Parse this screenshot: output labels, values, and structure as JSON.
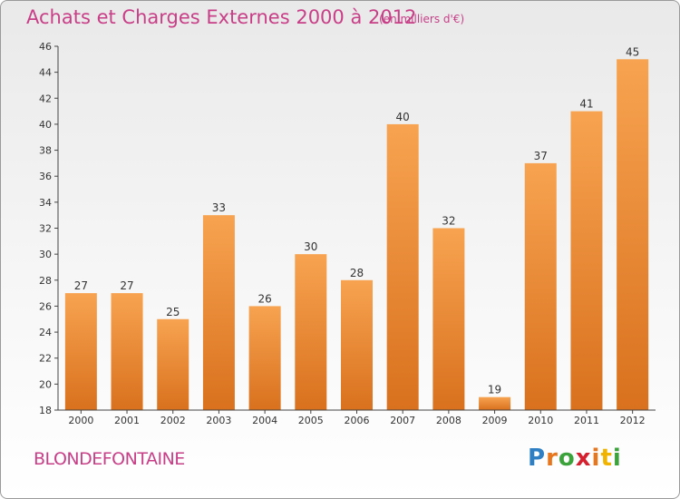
{
  "header": {
    "title": "Achats et Charges Externes 2000 à 2012",
    "unit_note": "(en milliers d'€)"
  },
  "footer": {
    "commune": "BLONDEFONTAINE",
    "logo_letters": [
      "P",
      "r",
      "o",
      "x",
      "i",
      "t",
      "i"
    ]
  },
  "colors": {
    "title": "#c83f88",
    "bar_light": "#f7a350",
    "bar_dark": "#d9711e",
    "logo": [
      "#2e7fc4",
      "#e8761c",
      "#3ca33c",
      "#d4202f",
      "#e8761c",
      "#f0b400",
      "#3ca33c"
    ]
  },
  "chart_data": {
    "type": "bar",
    "categories": [
      "2000",
      "2001",
      "2002",
      "2003",
      "2004",
      "2005",
      "2006",
      "2007",
      "2008",
      "2009",
      "2010",
      "2011",
      "2012"
    ],
    "values": [
      27,
      27,
      25,
      33,
      26,
      30,
      28,
      40,
      32,
      19,
      37,
      41,
      45
    ],
    "title": "Achats et Charges Externes 2000 à 2012",
    "xlabel": "",
    "ylabel": "",
    "ylim": [
      18,
      46
    ],
    "yticks": [
      18,
      20,
      22,
      24,
      26,
      28,
      30,
      32,
      34,
      36,
      38,
      40,
      42,
      44,
      46
    ],
    "grid": false,
    "data_labels": true
  }
}
